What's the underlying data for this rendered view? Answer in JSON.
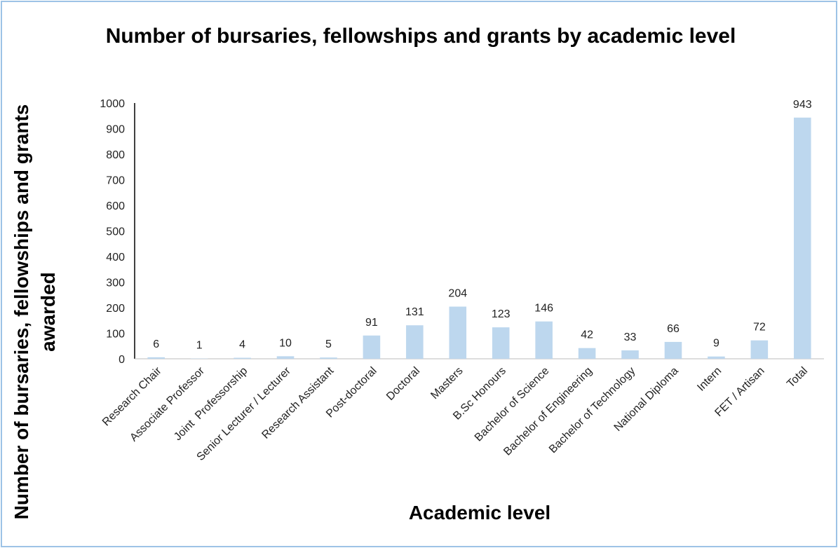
{
  "chart_data": {
    "type": "bar",
    "title": "Number of bursaries, fellowships and grants by academic level",
    "x_label": "Academic level",
    "y_label": "Number of bursaries, fellowships and grants awarded",
    "categories": [
      "Research Chair",
      "Associate Professor",
      "Joint  Professorship",
      "Senior Lecturer / Lecturer",
      "Research Assistant",
      "Post-doctoral",
      "Doctoral",
      "Masters",
      "B.Sc Honours",
      "Bachelor of Science",
      "Bachelor of Engineering",
      "Bachelor of Technology",
      "National Diploma",
      "Intern",
      "FET / Artisan",
      "Total"
    ],
    "values": [
      6,
      1,
      4,
      10,
      5,
      91,
      131,
      204,
      123,
      146,
      42,
      33,
      66,
      9,
      72,
      943
    ],
    "color": "#bdd7ee",
    "ylim": [
      0,
      1000
    ],
    "yticks": [
      0,
      100,
      200,
      300,
      400,
      500,
      600,
      700,
      800,
      900,
      1000
    ],
    "grid": false
  }
}
